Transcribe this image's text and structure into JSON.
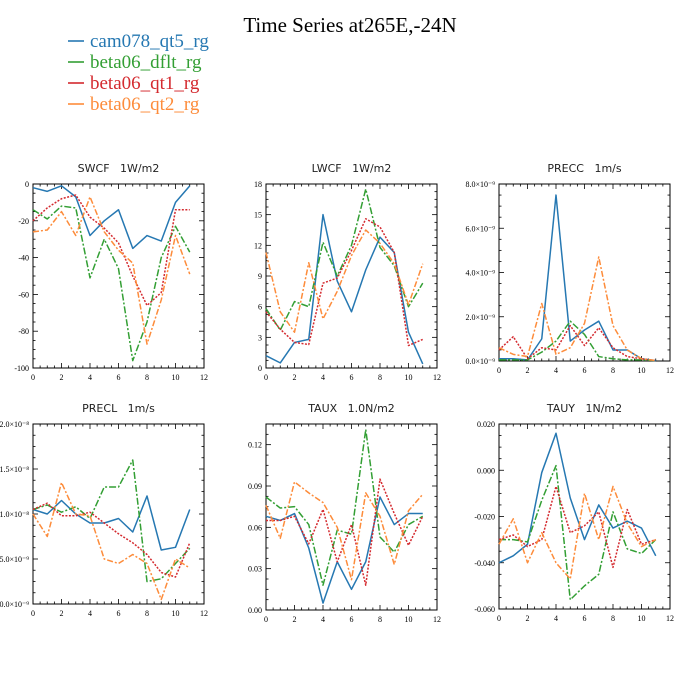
{
  "title": "Time Series at265E,-24N",
  "series_styles": [
    {
      "name": "cam078_qt5_rg",
      "color": "#2678b2",
      "dash": ""
    },
    {
      "name": "beta06_dflt_rg",
      "color": "#339f34",
      "dash": "7,2,2,2"
    },
    {
      "name": "beta06_qt1_rg",
      "color": "#d42a2f",
      "dash": "2,1.5"
    },
    {
      "name": "beta06_qt2_rg",
      "color": "#fd8c3b",
      "dash": "6,2,2,2"
    }
  ],
  "chart_data": [
    {
      "type": "line",
      "title": "SWCF   1W/m2",
      "x": [
        0,
        1,
        2,
        3,
        4,
        5,
        6,
        7,
        8,
        9,
        10,
        11
      ],
      "xlim": [
        0,
        12
      ],
      "xticks": [
        0,
        2,
        4,
        6,
        8,
        10,
        12
      ],
      "ylim": [
        -100,
        0
      ],
      "yticks": [
        0,
        -20,
        -40,
        -60,
        -80,
        -100
      ],
      "ytick_labels": [
        "0",
        "-20",
        "-40",
        "-60",
        "-80",
        "-100"
      ],
      "series": [
        {
          "values": [
            -2,
            -4,
            -1,
            -7,
            -28,
            -20,
            -14,
            -35,
            -28,
            -31,
            -10,
            -1
          ]
        },
        {
          "values": [
            -14,
            -19,
            -12,
            -13,
            -51,
            -30,
            -46,
            -96,
            -75,
            -40,
            -23,
            -37
          ]
        },
        {
          "values": [
            -20,
            -13,
            -8,
            -6,
            -18,
            -24,
            -32,
            -50,
            -66,
            -59,
            -14,
            -14
          ]
        },
        {
          "values": [
            -26,
            -25,
            -15,
            -28,
            -7,
            -26,
            -36,
            -43,
            -87,
            -63,
            -28,
            -49
          ]
        }
      ]
    },
    {
      "type": "line",
      "title": "LWCF   1W/m2",
      "x": [
        0,
        1,
        2,
        3,
        4,
        5,
        6,
        7,
        8,
        9,
        10,
        11
      ],
      "xlim": [
        0,
        12
      ],
      "xticks": [
        0,
        2,
        4,
        6,
        8,
        10,
        12
      ],
      "ylim": [
        0,
        18
      ],
      "yticks": [
        0,
        3,
        6,
        9,
        12,
        15,
        18
      ],
      "ytick_labels": [
        "0",
        "3",
        "6",
        "9",
        "12",
        "15",
        "18"
      ],
      "series": [
        {
          "values": [
            1.2,
            0.5,
            2.5,
            2.8,
            15,
            8.5,
            5.5,
            9.6,
            12.8,
            11.3,
            3.5,
            0.4
          ]
        },
        {
          "values": [
            5.8,
            3.7,
            6.5,
            6,
            12.3,
            9,
            12,
            17.5,
            11.8,
            10,
            6,
            8.3
          ]
        },
        {
          "values": [
            5.5,
            3.8,
            2.5,
            2.3,
            8.3,
            8.8,
            11.5,
            14.6,
            13.8,
            11.3,
            2.2,
            2.8
          ]
        },
        {
          "values": [
            11.3,
            5.5,
            3.5,
            10.3,
            4.8,
            7.5,
            11,
            13.5,
            12.2,
            10.2,
            6.2,
            10.2
          ]
        }
      ]
    },
    {
      "type": "line",
      "title": "PRECC   1m/s",
      "x": [
        0,
        1,
        2,
        3,
        4,
        5,
        6,
        7,
        8,
        9,
        10,
        11
      ],
      "xlim": [
        0,
        12
      ],
      "xticks": [
        0,
        2,
        4,
        6,
        8,
        10,
        12
      ],
      "ylim": [
        0,
        8e-09
      ],
      "yticks": [
        0,
        2e-09,
        4e-09,
        6e-09,
        8e-09
      ],
      "ytick_labels": [
        "0.0×10⁻⁹",
        "2.0×10⁻⁹",
        "4.0×10⁻⁹",
        "6.0×10⁻⁹",
        "8.0×10⁻⁹"
      ],
      "series": [
        {
          "values": [
            1e-10,
            1e-10,
            5e-11,
            1e-09,
            7.5e-09,
            9e-10,
            1.4e-09,
            1.8e-09,
            5e-10,
            5e-10,
            1e-10,
            2e-11
          ]
        },
        {
          "values": [
            5e-11,
            5e-11,
            5e-11,
            4e-10,
            9e-10,
            1.8e-09,
            1.2e-09,
            2e-10,
            1e-10,
            5e-11,
            5e-11,
            2e-11
          ]
        },
        {
          "values": [
            5e-10,
            1.1e-09,
            1e-10,
            6e-10,
            5e-10,
            1.6e-09,
            7e-10,
            1.5e-09,
            6e-10,
            2e-10,
            1e-10,
            2e-11
          ]
        },
        {
          "values": [
            6e-10,
            3e-10,
            2e-10,
            2.6e-09,
            3e-10,
            6e-10,
            1.7e-09,
            4.7e-09,
            1.6e-09,
            5e-10,
            1e-10,
            2e-11
          ]
        }
      ]
    },
    {
      "type": "line",
      "title": "PRECL   1m/s",
      "x": [
        0,
        1,
        2,
        3,
        4,
        5,
        6,
        7,
        8,
        9,
        10,
        11
      ],
      "xlim": [
        0,
        12
      ],
      "xticks": [
        0,
        2,
        4,
        6,
        8,
        10,
        12
      ],
      "ylim": [
        0,
        2e-08
      ],
      "yticks": [
        0,
        5e-09,
        1e-08,
        1.5e-08,
        2e-08
      ],
      "ytick_labels": [
        "0.0×10⁻⁹",
        "5.0×10⁻⁹",
        "1.0×10⁻⁸",
        "1.5×10⁻⁸",
        "2.0×10⁻⁸"
      ],
      "series": [
        {
          "values": [
            1.05e-08,
            1e-08,
            1.15e-08,
            1e-08,
            9e-09,
            9e-09,
            9.5e-09,
            8e-09,
            1.2e-08,
            6e-09,
            6.3e-09,
            1.05e-08
          ]
        },
        {
          "values": [
            1.05e-08,
            1.1e-08,
            1.02e-08,
            1.08e-08,
            9.5e-09,
            1.3e-08,
            1.3e-08,
            1.6e-08,
            2.5e-09,
            2.8e-09,
            4.5e-09,
            6.2e-09
          ]
        },
        {
          "values": [
            1.05e-08,
            1.12e-08,
            9.8e-09,
            9.8e-09,
            1.02e-08,
            9e-09,
            7.8e-09,
            6.8e-09,
            5.5e-09,
            3.5e-09,
            3e-09,
            6.8e-09
          ]
        },
        {
          "values": [
            1e-08,
            7.5e-09,
            1.35e-08,
            1e-08,
            9.8e-09,
            5e-09,
            4.5e-09,
            5.5e-09,
            4.5e-09,
            5e-10,
            5e-09,
            4e-09
          ]
        }
      ]
    },
    {
      "type": "line",
      "title": "TAUX   1.0N/m2",
      "x": [
        0,
        1,
        2,
        3,
        4,
        5,
        6,
        7,
        8,
        9,
        10,
        11
      ],
      "xlim": [
        0,
        12
      ],
      "xticks": [
        0,
        2,
        4,
        6,
        8,
        10,
        12
      ],
      "ylim": [
        0,
        0.135
      ],
      "yticks": [
        0,
        0.03,
        0.06,
        0.09,
        0.12
      ],
      "ytick_labels": [
        "0.00",
        "0.03",
        "0.06",
        "0.09",
        "0.12"
      ],
      "series": [
        {
          "values": [
            0.068,
            0.065,
            0.07,
            0.045,
            0.005,
            0.035,
            0.015,
            0.035,
            0.082,
            0.062,
            0.07,
            0.07
          ]
        },
        {
          "values": [
            0.082,
            0.074,
            0.075,
            0.062,
            0.018,
            0.058,
            0.055,
            0.131,
            0.053,
            0.042,
            0.062,
            0.068
          ]
        },
        {
          "values": [
            0.065,
            0.065,
            0.068,
            0.048,
            0.073,
            0.035,
            0.062,
            0.018,
            0.095,
            0.07,
            0.047,
            0.068
          ]
        },
        {
          "values": [
            0.076,
            0.052,
            0.093,
            0.085,
            0.078,
            0.06,
            0.022,
            0.085,
            0.068,
            0.033,
            0.072,
            0.084
          ]
        }
      ]
    },
    {
      "type": "line",
      "title": "TAUY   1N/m2",
      "x": [
        0,
        1,
        2,
        3,
        4,
        5,
        6,
        7,
        8,
        9,
        10,
        11
      ],
      "xlim": [
        0,
        12
      ],
      "xticks": [
        0,
        2,
        4,
        6,
        8,
        10,
        12
      ],
      "ylim": [
        -0.06,
        0.02
      ],
      "yticks": [
        0.02,
        0,
        -0.02,
        -0.04,
        -0.06
      ],
      "ytick_labels": [
        "0.020",
        "0.000",
        "-0.020",
        "-0.040",
        "-0.060"
      ],
      "series": [
        {
          "values": [
            -0.04,
            -0.037,
            -0.032,
            -0.001,
            0.016,
            -0.012,
            -0.03,
            -0.015,
            -0.025,
            -0.022,
            -0.025,
            -0.037
          ]
        },
        {
          "values": [
            -0.03,
            -0.03,
            -0.031,
            -0.013,
            0.002,
            -0.056,
            -0.05,
            -0.045,
            -0.018,
            -0.034,
            -0.036,
            -0.03
          ]
        },
        {
          "values": [
            -0.03,
            -0.028,
            -0.033,
            -0.03,
            -0.007,
            -0.027,
            -0.024,
            -0.018,
            -0.042,
            -0.017,
            -0.032,
            -0.03
          ]
        },
        {
          "values": [
            -0.032,
            -0.021,
            -0.04,
            -0.027,
            -0.04,
            -0.047,
            -0.01,
            -0.03,
            -0.007,
            -0.023,
            -0.033,
            -0.03
          ]
        }
      ]
    }
  ]
}
